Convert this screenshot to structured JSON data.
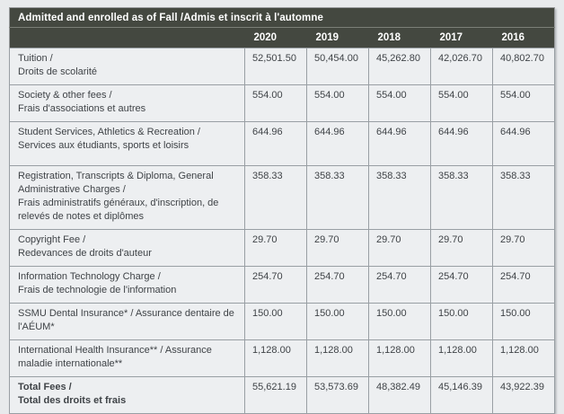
{
  "table": {
    "title": "Admitted and enrolled as of Fall /Admis et inscrit à l'automne",
    "year_columns": [
      "2020",
      "2019",
      "2018",
      "2017",
      "2016"
    ],
    "rows": [
      {
        "label_lines": [
          "Tuition /",
          "Droits de scolarité"
        ],
        "values": [
          "52,501.50",
          "50,454.00",
          "45,262.80",
          "42,026.70",
          "40,802.70"
        ],
        "bold": false
      },
      {
        "label_lines": [
          "Society & other fees /",
          "Frais d'associations et autres"
        ],
        "values": [
          "554.00",
          "554.00",
          "554.00",
          "554.00",
          "554.00"
        ],
        "bold": false
      },
      {
        "label_lines": [
          "Student Services, Athletics & Recreation /",
          "Services aux étudiants, sports et loisirs"
        ],
        "values": [
          "644.96",
          "644.96",
          "644.96",
          "644.96",
          "644.96"
        ],
        "bold": false
      },
      {
        "label_lines": [
          "Registration, Transcripts & Diploma, General Administrative Charges /",
          "Frais administratifs généraux, d'inscription, de relevés de notes et diplômes"
        ],
        "values": [
          "358.33",
          "358.33",
          "358.33",
          "358.33",
          "358.33"
        ],
        "bold": false
      },
      {
        "label_lines": [
          "Copyright Fee /",
          "Redevances de droits d'auteur"
        ],
        "values": [
          "29.70",
          "29.70",
          "29.70",
          "29.70",
          "29.70"
        ],
        "bold": false
      },
      {
        "label_lines": [
          "Information Technology Charge /",
          "Frais de technologie de l'information"
        ],
        "values": [
          "254.70",
          "254.70",
          "254.70",
          "254.70",
          "254.70"
        ],
        "bold": false
      },
      {
        "label_lines": [
          "SSMU Dental Insurance* / Assurance dentaire de l'AÉUM*"
        ],
        "values": [
          "150.00",
          "150.00",
          "150.00",
          "150.00",
          "150.00"
        ],
        "bold": false
      },
      {
        "label_lines": [
          "International Health Insurance** / Assurance maladie internationale**"
        ],
        "values": [
          "1,128.00",
          "1,128.00",
          "1,128.00",
          "1,128.00",
          "1,128.00"
        ],
        "bold": false
      },
      {
        "label_lines": [
          "Total Fees /",
          "Total des droits et frais"
        ],
        "values": [
          "55,621.19",
          "53,573.69",
          "48,382.49",
          "45,146.39",
          "43,922.39"
        ],
        "bold": true
      }
    ]
  },
  "colors": {
    "header_bar_bg": "#444840",
    "header_text": "#ffffff",
    "cell_bg": "#edeff1",
    "cell_border": "#999fa4",
    "body_text": "#3f4347",
    "page_bg": "#e8eaec"
  }
}
